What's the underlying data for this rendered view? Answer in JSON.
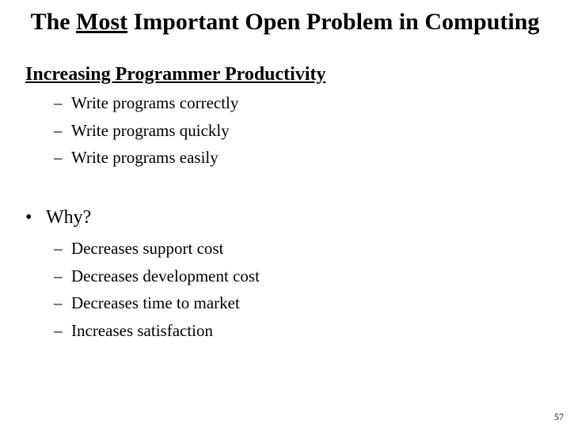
{
  "title": {
    "before": "The ",
    "emphasis": "Most",
    "after": " Important Open Problem in Computing"
  },
  "section_heading": "Increasing Programmer Productivity",
  "productivity_items": [
    "Write programs correctly",
    "Write programs quickly",
    "Write programs easily"
  ],
  "why_bullet": "Why?",
  "why_items": [
    "Decreases support cost",
    "Decreases development cost",
    "Decreases time to market",
    "Increases satisfaction"
  ],
  "dash_symbol": "–",
  "bullet_symbol": "•",
  "page_number": "57"
}
